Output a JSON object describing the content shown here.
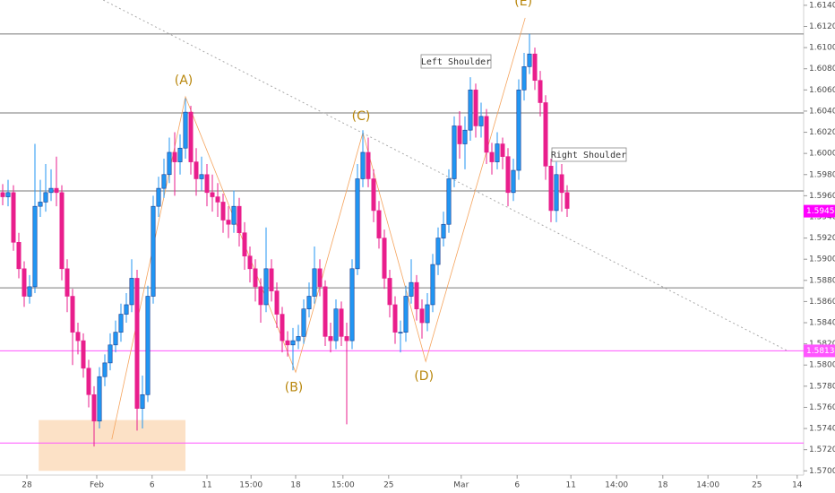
{
  "chart_data": {
    "type": "candlestick",
    "up_color": "#2196f3",
    "down_color": "#e91e8c",
    "open": [
      1.5963,
      1.5959,
      1.5963,
      1.5916,
      1.5891,
      1.5865,
      1.5874,
      1.595,
      1.5954,
      1.5963,
      1.5967,
      1.5963,
      1.5891,
      1.5865,
      1.5831,
      1.5823,
      1.5797,
      1.5772,
      1.5747,
      1.5789,
      1.5802,
      1.5819,
      1.5831,
      1.5848,
      1.5857,
      1.5882,
      1.5759,
      1.5772,
      1.5865,
      1.595,
      1.5967,
      1.598,
      1.6001,
      1.5992,
      1.6005,
      1.6039,
      1.5992,
      1.5976,
      1.598,
      1.5963,
      1.5959,
      1.5954,
      1.5937,
      1.5933,
      1.595,
      1.5925,
      1.5903,
      1.5891,
      1.5874,
      1.5857,
      1.5891,
      1.587,
      1.5848,
      1.5823,
      1.5819,
      1.5823,
      1.5827,
      1.5853,
      1.5865,
      1.5891,
      1.5874,
      1.5827,
      1.5823,
      1.5853,
      1.5827,
      1.5823,
      1.5891,
      1.5976,
      1.6001,
      1.5976,
      1.5946,
      1.592,
      1.5882,
      1.5857,
      1.5831,
      1.5831,
      1.5865,
      1.5878,
      1.5853,
      1.584,
      1.5857,
      1.5895,
      1.592,
      1.5933,
      1.5976,
      1.6026,
      1.6009,
      1.6022,
      1.606,
      1.6026,
      1.6035,
      1.6001,
      1.5992,
      1.6009,
      1.5997,
      1.5963,
      1.5984,
      1.606,
      1.6082,
      1.6094,
      1.6069,
      1.6048,
      1.5988,
      1.5946,
      1.598,
      1.5963
    ],
    "high": [
      1.5971,
      1.5975,
      1.597,
      1.5925,
      1.5898,
      1.5885,
      1.6009,
      1.5975,
      1.599,
      1.5985,
      1.5997,
      1.597,
      1.59,
      1.5872,
      1.584,
      1.583,
      1.5805,
      1.578,
      1.5798,
      1.581,
      1.583,
      1.5842,
      1.5858,
      1.5868,
      1.59,
      1.589,
      1.579,
      1.5875,
      1.596,
      1.5978,
      1.5995,
      1.6015,
      1.602,
      1.6018,
      1.6052,
      1.6045,
      1.6005,
      1.5997,
      1.599,
      1.598,
      1.5972,
      1.5962,
      1.595,
      1.5965,
      1.5958,
      1.5935,
      1.5912,
      1.59,
      1.5882,
      1.593,
      1.59,
      1.5878,
      1.5855,
      1.5832,
      1.5835,
      1.5838,
      1.5862,
      1.5878,
      1.5912,
      1.59,
      1.588,
      1.584,
      1.5862,
      1.586,
      1.584,
      1.59,
      1.599,
      1.6022,
      1.6015,
      1.5985,
      1.5955,
      1.5928,
      1.589,
      1.5865,
      1.5842,
      1.5875,
      1.59,
      1.5885,
      1.5862,
      1.5868,
      1.5905,
      1.593,
      1.5945,
      1.5985,
      1.6035,
      1.604,
      1.6035,
      1.6072,
      1.6066,
      1.6048,
      1.6042,
      1.601,
      1.602,
      1.6015,
      1.6005,
      1.5995,
      1.607,
      1.6095,
      1.6113,
      1.61,
      1.6078,
      1.6055,
      1.5995,
      1.5992,
      1.599,
      1.597
    ],
    "low": [
      1.5951,
      1.595,
      1.5908,
      1.5882,
      1.5855,
      1.5858,
      1.5868,
      1.594,
      1.5945,
      1.5955,
      1.595,
      1.588,
      1.585,
      1.58,
      1.581,
      1.5788,
      1.576,
      1.5723,
      1.574,
      1.578,
      1.5795,
      1.5812,
      1.5822,
      1.584,
      1.585,
      1.5738,
      1.574,
      1.5765,
      1.5858,
      1.594,
      1.5958,
      1.5972,
      1.596,
      1.598,
      1.5995,
      1.598,
      1.596,
      1.5965,
      1.595,
      1.5945,
      1.594,
      1.5925,
      1.592,
      1.5925,
      1.5912,
      1.589,
      1.5878,
      1.586,
      1.584,
      1.585,
      1.586,
      1.5835,
      1.5812,
      1.5808,
      1.5795,
      1.5815,
      1.582,
      1.5845,
      1.5858,
      1.5865,
      1.5818,
      1.5812,
      1.5815,
      1.5818,
      1.5744,
      1.5815,
      1.5885,
      1.5968,
      1.5968,
      1.5935,
      1.591,
      1.5872,
      1.5845,
      1.582,
      1.5812,
      1.5822,
      1.5858,
      1.5842,
      1.5825,
      1.5832,
      1.585,
      1.5885,
      1.5912,
      1.5925,
      1.5968,
      1.5995,
      1.5985,
      1.6012,
      1.6015,
      1.6015,
      1.599,
      1.598,
      1.5985,
      1.5985,
      1.595,
      1.5955,
      1.5975,
      1.605,
      1.6075,
      1.606,
      1.6035,
      1.5975,
      1.5935,
      1.5935,
      1.5945,
      1.594
    ],
    "close": [
      1.5959,
      1.5963,
      1.5916,
      1.5891,
      1.5865,
      1.5874,
      1.595,
      1.5954,
      1.5963,
      1.5967,
      1.5963,
      1.5891,
      1.5865,
      1.5831,
      1.5823,
      1.5797,
      1.5772,
      1.5747,
      1.5789,
      1.5802,
      1.5819,
      1.5831,
      1.5848,
      1.5857,
      1.5882,
      1.5759,
      1.5772,
      1.5865,
      1.595,
      1.5967,
      1.598,
      1.6001,
      1.5992,
      1.6005,
      1.6039,
      1.5992,
      1.5976,
      1.598,
      1.5963,
      1.5959,
      1.5954,
      1.5937,
      1.5933,
      1.595,
      1.5925,
      1.5903,
      1.5891,
      1.5874,
      1.5857,
      1.5891,
      1.587,
      1.5848,
      1.5823,
      1.5819,
      1.5823,
      1.5827,
      1.5853,
      1.5865,
      1.5891,
      1.5874,
      1.5827,
      1.5823,
      1.5853,
      1.5827,
      1.5823,
      1.5891,
      1.5976,
      1.6001,
      1.5976,
      1.5946,
      1.592,
      1.5882,
      1.5857,
      1.5831,
      1.5831,
      1.5865,
      1.5878,
      1.5853,
      1.584,
      1.5857,
      1.5895,
      1.592,
      1.5933,
      1.5976,
      1.6026,
      1.6009,
      1.6022,
      1.606,
      1.6026,
      1.6035,
      1.6001,
      1.5992,
      1.6009,
      1.5997,
      1.5963,
      1.5984,
      1.606,
      1.6082,
      1.6094,
      1.6069,
      1.6048,
      1.5988,
      1.5946,
      1.598,
      1.5963,
      1.5948
    ],
    "xlim": [
      -0.5,
      149
    ],
    "ylim": [
      1.5696,
      1.6145
    ],
    "xticks": [
      {
        "value": 4.5,
        "label": "28"
      },
      {
        "value": 17.5,
        "label": "Feb"
      },
      {
        "value": 27.8,
        "label": "6"
      },
      {
        "value": 38,
        "label": "11"
      },
      {
        "value": 46.2,
        "label": "15:00"
      },
      {
        "value": 54.5,
        "label": "18"
      },
      {
        "value": 63.3,
        "label": "15:00"
      },
      {
        "value": 71.8,
        "label": "25"
      },
      {
        "value": 85.3,
        "label": "Mar"
      },
      {
        "value": 95.7,
        "label": "6"
      },
      {
        "value": 105.7,
        "label": "11"
      },
      {
        "value": 114.2,
        "label": "14:00"
      },
      {
        "value": 122.8,
        "label": "18"
      },
      {
        "value": 131.2,
        "label": "14:00"
      },
      {
        "value": 140.3,
        "label": "25"
      },
      {
        "value": 147.8,
        "label": "14"
      }
    ],
    "yticks": [
      {
        "value": 1.57,
        "label": "1.57000"
      },
      {
        "value": 1.572,
        "label": "1.57200"
      },
      {
        "value": 1.574,
        "label": "1.57400"
      },
      {
        "value": 1.576,
        "label": "1.57600"
      },
      {
        "value": 1.578,
        "label": "1.57800"
      },
      {
        "value": 1.58,
        "label": "1.58000"
      },
      {
        "value": 1.582,
        "label": "1.58200"
      },
      {
        "value": 1.584,
        "label": "1.58400"
      },
      {
        "value": 1.586,
        "label": "1.58600"
      },
      {
        "value": 1.588,
        "label": "1.58800"
      },
      {
        "value": 1.59,
        "label": "1.59000"
      },
      {
        "value": 1.592,
        "label": "1.59200"
      },
      {
        "value": 1.594,
        "label": "1.59400"
      },
      {
        "value": 1.596,
        "label": "1.59600"
      },
      {
        "value": 1.598,
        "label": "1.59800"
      },
      {
        "value": 1.6,
        "label": "1.60000"
      },
      {
        "value": 1.602,
        "label": "1.60200"
      },
      {
        "value": 1.604,
        "label": "1.60400"
      },
      {
        "value": 1.606,
        "label": "1.60600"
      },
      {
        "value": 1.608,
        "label": "1.60800"
      },
      {
        "value": 1.61,
        "label": "1.61000"
      },
      {
        "value": 1.612,
        "label": "1.61200"
      },
      {
        "value": 1.614,
        "label": "1.61400"
      }
    ],
    "grid": false,
    "hlines": [
      {
        "value": 1.61129,
        "color": "#7a7a7a"
      },
      {
        "value": 1.60383,
        "color": "#7a7a7a"
      },
      {
        "value": 1.59645,
        "color": "#7a7a7a"
      },
      {
        "value": 1.58729,
        "color": "#7a7a7a"
      },
      {
        "value": 1.58134,
        "color": "#ff55ff"
      },
      {
        "value": 1.57263,
        "color": "#ff55ff"
      }
    ],
    "trendline": {
      "x": [
        18.7,
        146
      ],
      "y": [
        1.6145,
        1.58134
      ],
      "color": "#aaaaaa"
    },
    "zone": {
      "x": [
        6.7,
        34
      ],
      "y": [
        1.57,
        1.5748
      ],
      "color": "#fbd7b3"
    },
    "wave": {
      "x": [
        20.3,
        34,
        54.5,
        67,
        78.7,
        97.2
      ],
      "y": [
        1.57297,
        1.60535,
        1.57932,
        1.60196,
        1.58034,
        1.61281
      ],
      "color": "#f5a35c",
      "labels": [
        null,
        "(A)",
        "(B)",
        "(C)",
        "(D)",
        "(E)"
      ]
    },
    "annotations": [
      "Left Shoulder",
      "Right Shoulder"
    ],
    "price_tags": [
      {
        "value": 1.59454,
        "color": "#ff00ff"
      },
      {
        "value": 1.58134,
        "color": "#ff55ff"
      }
    ]
  }
}
